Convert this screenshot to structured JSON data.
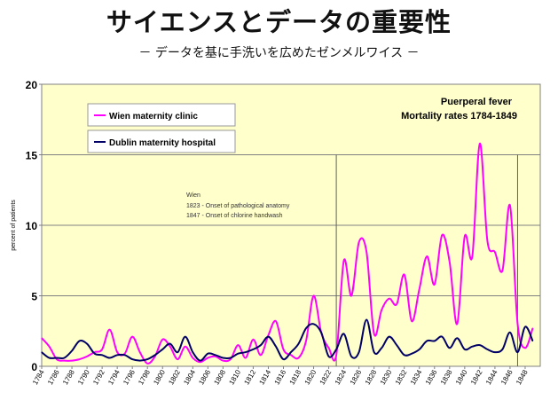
{
  "header": {
    "title": "サイエンスとデータの重要性",
    "subtitle": "－ データを基に手洗いを広めたゼンメルワイス －"
  },
  "chart_data": {
    "type": "line",
    "title_lines": [
      "Puerperal fever",
      "Mortality rates 1784-1849"
    ],
    "ylabel": "percent of patients",
    "xlabel": "",
    "ylim": [
      0,
      20
    ],
    "xlim": [
      1784,
      1850
    ],
    "y_ticks": [
      "0",
      "5",
      "10",
      "15",
      "20"
    ],
    "y_tick_values": [
      0,
      5,
      10,
      15,
      20
    ],
    "x_ticks": [
      "1784",
      "1786",
      "1788",
      "1790",
      "1792",
      "1794",
      "1796",
      "1798",
      "1800",
      "1802",
      "1804",
      "1806",
      "1808",
      "1810",
      "1812",
      "1814",
      "1816",
      "1818",
      "1820",
      "1822",
      "1824",
      "1826",
      "1828",
      "1830",
      "1832",
      "1834",
      "1836",
      "1838",
      "1840",
      "1842",
      "1844",
      "1846",
      "1848"
    ],
    "x_tick_values": [
      1784,
      1786,
      1788,
      1790,
      1792,
      1794,
      1796,
      1798,
      1800,
      1802,
      1804,
      1806,
      1808,
      1810,
      1812,
      1814,
      1816,
      1818,
      1820,
      1822,
      1824,
      1826,
      1828,
      1830,
      1832,
      1834,
      1836,
      1838,
      1840,
      1842,
      1844,
      1846,
      1848
    ],
    "markers": [
      1823,
      1847
    ],
    "grid": "horizontal",
    "background": "#ffffcc",
    "annotation": {
      "lines": [
        "Wien",
        "1823 - Onset of pathological anatomy",
        "1847 - Onset of chlorine handwash"
      ]
    },
    "series": [
      {
        "name": "Wien maternity clinic",
        "color": "#ff00ff",
        "x": [
          1784,
          1785,
          1786,
          1787,
          1788,
          1789,
          1790,
          1791,
          1792,
          1793,
          1794,
          1795,
          1796,
          1797,
          1798,
          1799,
          1800,
          1801,
          1802,
          1803,
          1804,
          1805,
          1806,
          1807,
          1808,
          1809,
          1810,
          1811,
          1812,
          1813,
          1814,
          1815,
          1816,
          1817,
          1818,
          1819,
          1820,
          1821,
          1822,
          1823,
          1824,
          1825,
          1826,
          1827,
          1828,
          1829,
          1830,
          1831,
          1832,
          1833,
          1834,
          1835,
          1836,
          1837,
          1838,
          1839,
          1840,
          1841,
          1842,
          1843,
          1844,
          1845,
          1846,
          1847,
          1848,
          1849
        ],
        "values": [
          2.0,
          1.4,
          0.5,
          0.4,
          0.4,
          0.5,
          0.7,
          1.0,
          1.2,
          2.6,
          1.0,
          0.9,
          2.1,
          1.0,
          0.2,
          0.7,
          1.9,
          1.4,
          0.5,
          1.4,
          0.6,
          0.3,
          0.6,
          0.7,
          0.4,
          0.5,
          1.5,
          0.6,
          1.9,
          0.8,
          2.2,
          3.2,
          1.2,
          0.8,
          0.6,
          1.8,
          5.0,
          2.4,
          1.3,
          0.8,
          7.5,
          5.0,
          8.8,
          8.1,
          2.3,
          4.0,
          4.8,
          4.4,
          6.5,
          3.2,
          5.5,
          7.8,
          5.8,
          9.3,
          7.4,
          3.0,
          9.2,
          7.8,
          15.8,
          8.9,
          8.1,
          6.8,
          11.4,
          3.0,
          1.3,
          2.7
        ]
      },
      {
        "name": "Dublin maternity hospital",
        "color": "#000066",
        "x": [
          1784,
          1785,
          1786,
          1787,
          1788,
          1789,
          1790,
          1791,
          1792,
          1793,
          1794,
          1795,
          1796,
          1797,
          1798,
          1799,
          1800,
          1801,
          1802,
          1803,
          1804,
          1805,
          1806,
          1807,
          1808,
          1809,
          1810,
          1811,
          1812,
          1813,
          1814,
          1815,
          1816,
          1817,
          1818,
          1819,
          1820,
          1821,
          1822,
          1823,
          1824,
          1825,
          1826,
          1827,
          1828,
          1829,
          1830,
          1831,
          1832,
          1833,
          1834,
          1835,
          1836,
          1837,
          1838,
          1839,
          1840,
          1841,
          1842,
          1843,
          1844,
          1845,
          1846,
          1847,
          1848,
          1849
        ],
        "values": [
          1.0,
          0.6,
          0.6,
          0.6,
          1.1,
          1.8,
          1.6,
          0.9,
          0.8,
          0.6,
          0.8,
          0.8,
          0.5,
          0.4,
          0.5,
          0.8,
          1.2,
          1.6,
          1.0,
          2.1,
          1.0,
          0.4,
          0.9,
          0.8,
          0.6,
          0.6,
          0.9,
          1.0,
          1.2,
          1.5,
          2.1,
          1.4,
          0.5,
          1.0,
          1.6,
          2.7,
          3.0,
          2.4,
          0.7,
          1.2,
          2.3,
          0.7,
          1.0,
          3.3,
          1.0,
          1.3,
          2.1,
          1.5,
          0.8,
          0.9,
          1.2,
          1.8,
          1.8,
          2.1,
          1.3,
          2.0,
          1.2,
          1.4,
          1.5,
          1.2,
          1.0,
          1.2,
          2.4,
          1.0,
          2.8,
          1.8
        ]
      }
    ]
  }
}
